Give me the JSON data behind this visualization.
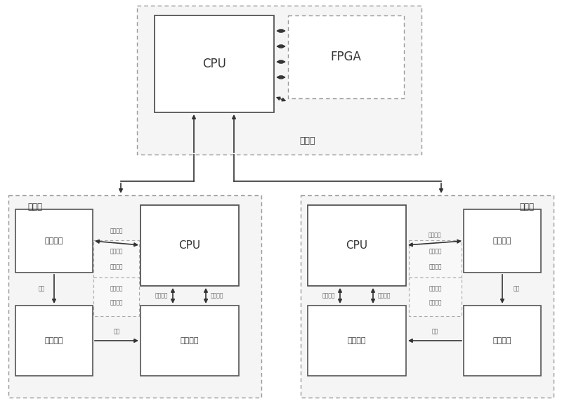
{
  "bg_color": "#ffffff",
  "box_solid_color": "#ffffff",
  "box_solid_edge": "#555555",
  "box_dashed_edge": "#888888",
  "box_dashed_bg": "#f5f5f5",
  "arrow_color": "#333333",
  "text_color": "#333333",
  "title_main": "主控板",
  "title_left": "受控板",
  "title_right": "受控板",
  "label_cpu": "CPU",
  "label_fpga": "FPGA",
  "label_app": "应用模块",
  "label_clk": "时钟模块",
  "label_ctrl": "控制通道",
  "label_data": "数据通道",
  "label_clksig": "时钟",
  "label_ctrlch": "控制通道",
  "label_ctrlch2": "控制通道",
  "label_datach": "数据通道",
  "label_datach2": "数据通道"
}
